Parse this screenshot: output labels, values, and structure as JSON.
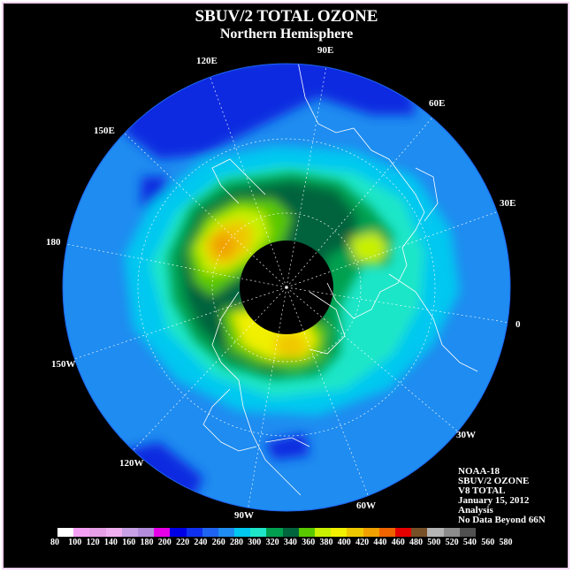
{
  "title": "SBUV/2 TOTAL OZONE",
  "subtitle": "Northern Hemisphere",
  "longitude_labels": [
    {
      "text": "90E"
    },
    {
      "text": "60E"
    },
    {
      "text": "30E"
    },
    {
      "text": "0"
    },
    {
      "text": "30W"
    },
    {
      "text": "60W"
    },
    {
      "text": "90W"
    },
    {
      "text": "120W"
    },
    {
      "text": "150W"
    },
    {
      "text": "180"
    },
    {
      "text": "150E"
    },
    {
      "text": "120E"
    }
  ],
  "info_block": {
    "satellite": "NOAA-18",
    "product": "SBUV/2 OZONE",
    "version": "V8 TOTAL",
    "date": "January 15, 2012",
    "type": "Analysis",
    "note": "No Data Beyond 66N"
  },
  "colorbar": {
    "labels": [
      "80",
      "100",
      "120",
      "140",
      "160",
      "180",
      "200",
      "220",
      "240",
      "260",
      "280",
      "300",
      "320",
      "340",
      "360",
      "380",
      "400",
      "420",
      "440",
      "460",
      "480",
      "500",
      "520",
      "540",
      "560",
      "580"
    ],
    "colors": [
      "#ffffff",
      "#f5a0f5",
      "#e6a0e6",
      "#f0b0f0",
      "#c8a0e6",
      "#b48cdc",
      "#e600e6",
      "#0000e6",
      "#1030f0",
      "#1e64f0",
      "#1e8cf0",
      "#00c8f0",
      "#1ee6c8",
      "#00a050",
      "#00643c",
      "#5ac800",
      "#c8f000",
      "#f0f000",
      "#f0c800",
      "#f0a000",
      "#f06400",
      "#e60000",
      "#785028",
      "#b4b4b4",
      "#8c8c8c",
      "#505050"
    ]
  }
}
